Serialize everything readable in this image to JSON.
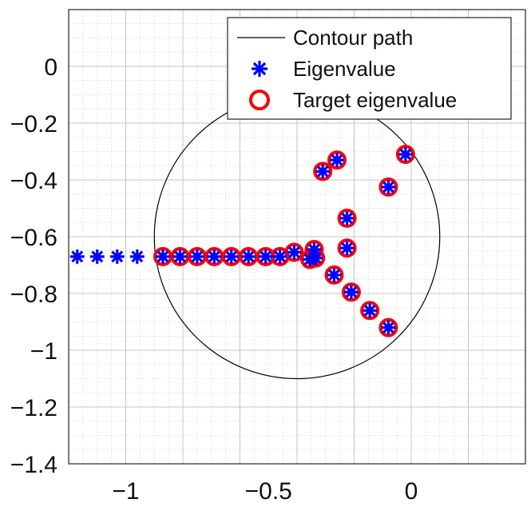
{
  "chart_data": {
    "type": "scatter",
    "xlim": [
      -1.2,
      0.4
    ],
    "ylim": [
      -1.4,
      0.2
    ],
    "x_ticks": [
      -1,
      -0.5,
      0
    ],
    "x_tick_labels": [
      "−1",
      "−0.5",
      "0"
    ],
    "y_ticks": [
      0,
      -0.2,
      -0.4,
      -0.6,
      -0.8,
      -1,
      -1.2,
      -1.4
    ],
    "y_tick_labels": [
      "0",
      "−0.2",
      "−0.4",
      "−0.6",
      "−0.8",
      "−1",
      "−1.2",
      "−1.4"
    ],
    "grid": true,
    "minor_grid": true,
    "legend_position": "top-right",
    "colors": {
      "contour": "#000000",
      "eigenvalue": "#0000ff",
      "target": "#ff0000"
    },
    "series": [
      {
        "name": "Contour path",
        "kind": "circle",
        "center": [
          -0.4,
          -0.6
        ],
        "radius": 0.5
      },
      {
        "name": "Eigenvalue",
        "kind": "marker-asterisk",
        "points": [
          [
            -1.17,
            -0.67
          ],
          [
            -1.1,
            -0.67
          ],
          [
            -1.03,
            -0.67
          ],
          [
            -0.96,
            -0.67
          ],
          [
            -0.87,
            -0.67
          ],
          [
            -0.81,
            -0.67
          ],
          [
            -0.75,
            -0.67
          ],
          [
            -0.69,
            -0.67
          ],
          [
            -0.63,
            -0.67
          ],
          [
            -0.57,
            -0.67
          ],
          [
            -0.51,
            -0.67
          ],
          [
            -0.46,
            -0.67
          ],
          [
            -0.41,
            -0.655
          ],
          [
            -0.34,
            -0.645
          ],
          [
            -0.355,
            -0.68
          ],
          [
            -0.335,
            -0.675
          ],
          [
            -0.27,
            -0.735
          ],
          [
            -0.31,
            -0.37
          ],
          [
            -0.26,
            -0.33
          ],
          [
            -0.02,
            -0.31
          ],
          [
            -0.08,
            -0.425
          ],
          [
            -0.225,
            -0.535
          ],
          [
            -0.225,
            -0.64
          ],
          [
            -0.21,
            -0.795
          ],
          [
            -0.145,
            -0.86
          ],
          [
            -0.08,
            -0.92
          ]
        ]
      },
      {
        "name": "Target eigenvalue",
        "kind": "marker-circle",
        "points": [
          [
            -0.87,
            -0.67
          ],
          [
            -0.81,
            -0.67
          ],
          [
            -0.75,
            -0.67
          ],
          [
            -0.69,
            -0.67
          ],
          [
            -0.63,
            -0.67
          ],
          [
            -0.57,
            -0.67
          ],
          [
            -0.51,
            -0.67
          ],
          [
            -0.46,
            -0.67
          ],
          [
            -0.41,
            -0.655
          ],
          [
            -0.34,
            -0.645
          ],
          [
            -0.355,
            -0.68
          ],
          [
            -0.335,
            -0.675
          ],
          [
            -0.27,
            -0.735
          ],
          [
            -0.31,
            -0.37
          ],
          [
            -0.26,
            -0.33
          ],
          [
            -0.02,
            -0.31
          ],
          [
            -0.08,
            -0.425
          ],
          [
            -0.225,
            -0.535
          ],
          [
            -0.225,
            -0.64
          ],
          [
            -0.21,
            -0.795
          ],
          [
            -0.145,
            -0.86
          ],
          [
            -0.08,
            -0.92
          ]
        ]
      }
    ]
  }
}
